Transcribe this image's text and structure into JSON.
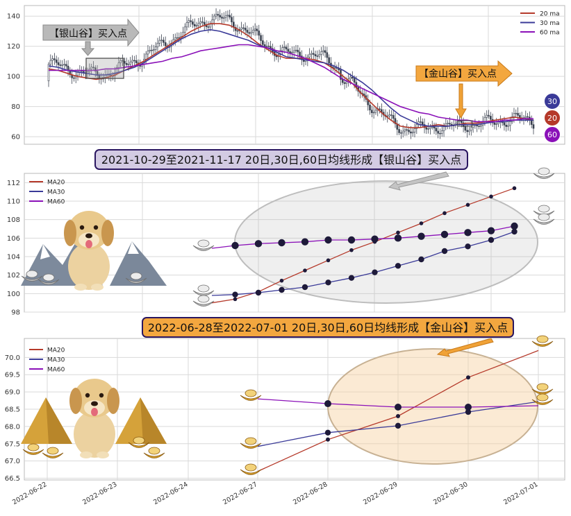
{
  "chart_data": [
    {
      "type": "line",
      "subtype": "candlestick-with-moving-averages",
      "ylim": [
        55,
        147
      ],
      "yticks": [
        60,
        80,
        100,
        120,
        140
      ],
      "grid": true,
      "legend": {
        "placement": "top-right",
        "entries": [
          "20 ma",
          "30 ma",
          "60 ma"
        ]
      },
      "annotations": [
        {
          "text": "【银山谷】买入点",
          "style": "silver-arrow"
        },
        {
          "text": "【金山谷】买入点",
          "style": "gold-arrow"
        }
      ],
      "end_badges": [
        "30",
        "20",
        "60"
      ],
      "colors": {
        "ma20": "#b5392a",
        "ma30": "#3a3a98",
        "ma60": "#8a10b8",
        "candles": "#3b4250"
      },
      "series": [
        {
          "name": "20 ma",
          "values": [
            105,
            104,
            102,
            100,
            99,
            98,
            99,
            101,
            104,
            107,
            110,
            114,
            118,
            122,
            126,
            130,
            133,
            135,
            135,
            134,
            131,
            127,
            122,
            118,
            114,
            112,
            112,
            112,
            111,
            109,
            105,
            100,
            95,
            88,
            82,
            76,
            71,
            67,
            66,
            66,
            67,
            68,
            67,
            68,
            69,
            69,
            70,
            71,
            72,
            73,
            72,
            71
          ]
        },
        {
          "name": "30 ma",
          "values": [
            107,
            106,
            104,
            103,
            102,
            101,
            101,
            102,
            104,
            106,
            109,
            113,
            117,
            121,
            125,
            128,
            130,
            131,
            130,
            128,
            126,
            124,
            121,
            119,
            116,
            113,
            112,
            111,
            110,
            109,
            107,
            104,
            100,
            96,
            91,
            85,
            79,
            74,
            71,
            68,
            67,
            67,
            67,
            68,
            68,
            68,
            69,
            70,
            70,
            71,
            71,
            71
          ]
        },
        {
          "name": "60 ma",
          "values": [
            104,
            104,
            104,
            104,
            104,
            104,
            105,
            105,
            106,
            107,
            108,
            109,
            110,
            112,
            113,
            115,
            117,
            118,
            119,
            120,
            121,
            121,
            120,
            119,
            117,
            116,
            114,
            112,
            109,
            106,
            102,
            98,
            95,
            92,
            89,
            86,
            83,
            80,
            78,
            76,
            75,
            73,
            72,
            71,
            71,
            70,
            70,
            70,
            71,
            71,
            72,
            72
          ]
        }
      ]
    },
    {
      "type": "line",
      "title": "2021-10-29至2021-11-17 20日,30日,60日均线形成【银山谷】买入点",
      "ylim": [
        98,
        113
      ],
      "yticks": [
        98,
        100,
        102,
        104,
        106,
        108,
        110,
        112
      ],
      "grid": true,
      "legend": {
        "placement": "top-left",
        "entries": [
          "MA20",
          "MA30",
          "MA60"
        ]
      },
      "x": [
        1,
        2,
        3,
        4,
        5,
        6,
        7,
        8,
        9,
        10,
        11,
        12,
        13,
        14
      ],
      "series": [
        {
          "name": "MA20",
          "values": [
            99.0,
            99.4,
            100.2,
            101.4,
            102.5,
            103.6,
            104.7,
            105.6,
            106.6,
            107.6,
            108.7,
            109.6,
            110.5,
            111.4
          ]
        },
        {
          "name": "MA30",
          "values": [
            99.8,
            99.9,
            100.1,
            100.4,
            100.7,
            101.2,
            101.7,
            102.3,
            103.0,
            103.7,
            104.6,
            105.1,
            105.8,
            106.7
          ]
        },
        {
          "name": "MA60",
          "values": [
            104.9,
            105.2,
            105.4,
            105.5,
            105.6,
            105.8,
            105.8,
            105.9,
            106.0,
            106.2,
            106.4,
            106.6,
            106.8,
            107.3
          ]
        }
      ]
    },
    {
      "type": "line",
      "title": "2022-06-28至2022-07-01 20日,30日,60日均线形成【金山谷】买入点",
      "ylim": [
        66.45,
        70.55
      ],
      "yticks": [
        66.5,
        67.0,
        67.5,
        68.0,
        68.5,
        69.0,
        69.5,
        70.0
      ],
      "grid": true,
      "legend": {
        "placement": "top-left",
        "entries": [
          "MA20",
          "MA30",
          "MA60"
        ]
      },
      "x": [
        "2022-06-27",
        "2022-06-28",
        "2022-06-29",
        "2022-06-30",
        "2022-07-01"
      ],
      "xticks": [
        "2022-06-22",
        "2022-06-23",
        "2022-06-24",
        "2022-06-27",
        "2022-06-28",
        "2022-06-29",
        "2022-06-30",
        "2022-07-01"
      ],
      "series": [
        {
          "name": "MA20",
          "values": [
            66.7,
            67.62,
            68.3,
            69.42,
            70.2
          ]
        },
        {
          "name": "MA30",
          "values": [
            67.42,
            67.82,
            68.02,
            68.42,
            68.72
          ]
        },
        {
          "name": "MA60",
          "values": [
            68.8,
            68.66,
            68.56,
            68.56,
            68.6
          ]
        }
      ]
    }
  ]
}
